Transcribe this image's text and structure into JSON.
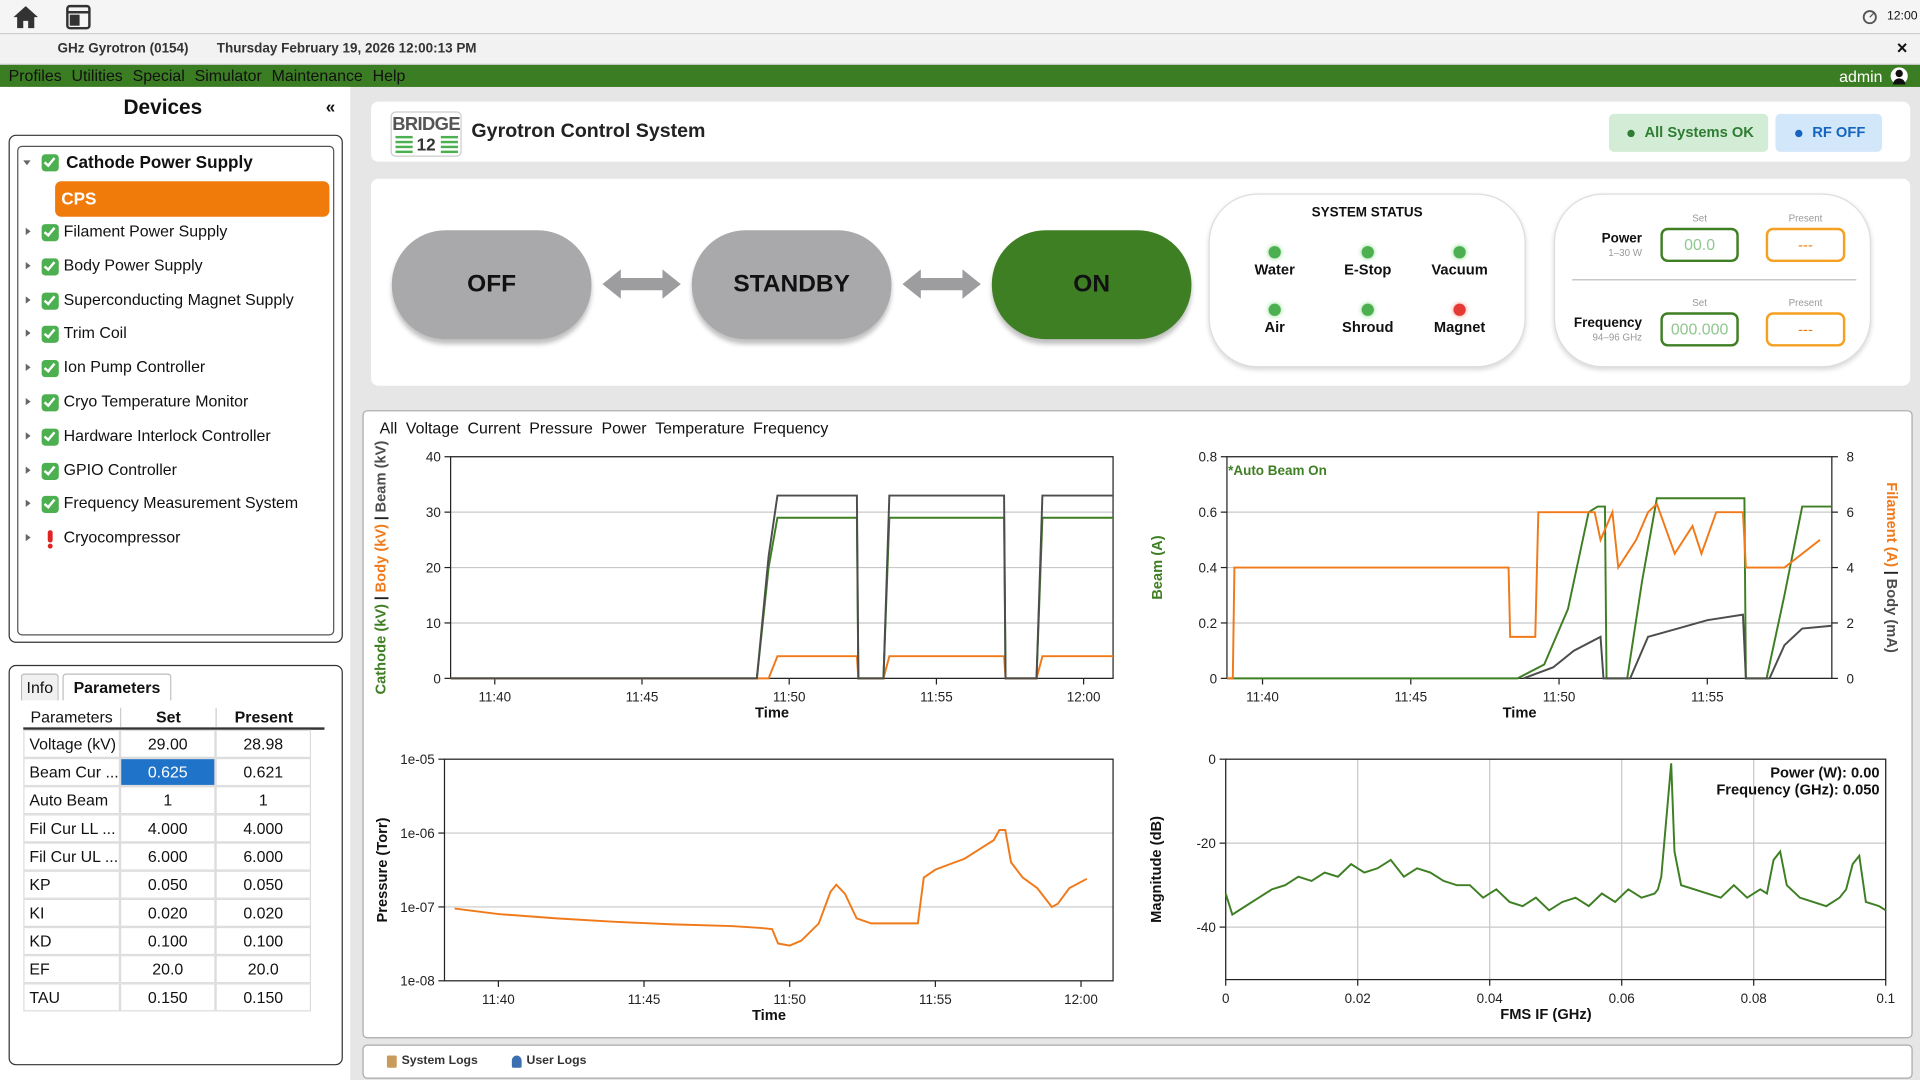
{
  "taskbar": {
    "clock": "12:00"
  },
  "window": {
    "app": "GHz Gyrotron (0154)",
    "datetime": "Thursday February 19, 2026 12:00:13 PM",
    "close": "×"
  },
  "menu": {
    "items": [
      "Profiles",
      "Utilities",
      "Special",
      "Simulator",
      "Maintenance",
      "Help"
    ],
    "user": "admin"
  },
  "devices": {
    "title": "Devices",
    "collapse": "«",
    "items": [
      {
        "label": "Cathode Power Supply",
        "status": "ok",
        "children": [
          "CPS"
        ]
      },
      {
        "label": "Filament Power Supply",
        "status": "ok"
      },
      {
        "label": "Body Power Supply",
        "status": "ok"
      },
      {
        "label": "Superconducting Magnet Supply",
        "status": "ok"
      },
      {
        "label": "Trim Coil",
        "status": "ok"
      },
      {
        "label": "Ion Pump Controller",
        "status": "ok"
      },
      {
        "label": "Cryo Temperature Monitor",
        "status": "ok"
      },
      {
        "label": "Hardware Interlock Controller",
        "status": "ok"
      },
      {
        "label": "GPIO Controller",
        "status": "ok"
      },
      {
        "label": "Frequency Measurement System",
        "status": "ok"
      },
      {
        "label": "Cryocompressor",
        "status": "error"
      }
    ]
  },
  "parameters": {
    "tabs": [
      "Info",
      "Parameters"
    ],
    "active_tab": 1,
    "columns": [
      "Parameters",
      "Set",
      "Present"
    ],
    "selected": [
      1,
      1
    ],
    "rows": [
      [
        "Voltage (kV)",
        "29.00",
        "28.98"
      ],
      [
        "Beam Cur ...",
        "0.625",
        "0.621"
      ],
      [
        "Auto Beam",
        "1",
        "1"
      ],
      [
        "Fil Cur LL ...",
        "4.000",
        "4.000"
      ],
      [
        "Fil Cur UL ...",
        "6.000",
        "6.000"
      ],
      [
        "KP",
        "0.050",
        "0.050"
      ],
      [
        "KI",
        "0.020",
        "0.020"
      ],
      [
        "KD",
        "0.100",
        "0.100"
      ],
      [
        "EF",
        "20.0",
        "20.0"
      ],
      [
        "TAU",
        "0.150",
        "0.150"
      ]
    ]
  },
  "header": {
    "logo": "BRIDGE",
    "logo_number": "12",
    "title": "Gyrotron Control System",
    "badges": [
      {
        "label": "All Systems OK",
        "style": "ok"
      },
      {
        "label": "RF OFF",
        "style": "info"
      }
    ]
  },
  "modes": {
    "buttons": [
      "OFF",
      "STANDBY",
      "ON"
    ],
    "active": 2
  },
  "system_status": {
    "title": "SYSTEM STATUS",
    "items": [
      {
        "label": "Water",
        "state": "ok"
      },
      {
        "label": "E-Stop",
        "state": "ok"
      },
      {
        "label": "Vacuum",
        "state": "ok"
      },
      {
        "label": "Air",
        "state": "ok"
      },
      {
        "label": "Shroud",
        "state": "ok"
      },
      {
        "label": "Magnet",
        "state": "fault"
      }
    ]
  },
  "setpoints": {
    "set_label": "Set",
    "present_label": "Present",
    "rows": [
      {
        "label": "Power",
        "range": "1–30 W",
        "set": "00.0",
        "present": "---"
      },
      {
        "label": "Frequency",
        "range": "94–96 GHz",
        "set": "000.000",
        "present": "---"
      }
    ]
  },
  "plot_tabs": [
    "All",
    "Voltage",
    "Current",
    "Pressure",
    "Power",
    "Temperature",
    "Frequency"
  ],
  "chart_data": [
    {
      "type": "line",
      "xlabel": "Time",
      "ylabel_separator": "|",
      "grid": true,
      "x": [
        698.5,
        708.9,
        709.3,
        709.6,
        712.3,
        712.35,
        713.2,
        713.4,
        717.3,
        717.35,
        718.4,
        718.6,
        721
      ],
      "xlim": [
        698.5,
        721
      ],
      "xticks": [
        {
          "value": 700,
          "label": "11:40"
        },
        {
          "value": 705,
          "label": "11:45"
        },
        {
          "value": 710,
          "label": "11:50"
        },
        {
          "value": 715,
          "label": "11:55"
        },
        {
          "value": 720,
          "label": "12:00"
        }
      ],
      "ylim": [
        0,
        40
      ],
      "yticks": [
        0,
        10,
        20,
        30,
        40
      ],
      "series": [
        {
          "name": "Cathode (kV)",
          "color": "#3f7f24",
          "values": [
            0,
            0,
            20,
            29,
            29,
            0,
            0,
            29,
            29,
            0,
            0,
            29,
            29
          ]
        },
        {
          "name": "Body (kV)",
          "color": "#f07a1a",
          "values": [
            0,
            0,
            0,
            4,
            4,
            0,
            0,
            4,
            4,
            0,
            0,
            4,
            4
          ]
        },
        {
          "name": "Beam (kV)",
          "color": "#4d4d4d",
          "values": [
            0,
            0,
            22,
            33,
            33,
            0,
            0,
            33,
            33,
            0,
            0,
            33,
            33
          ]
        }
      ]
    },
    {
      "type": "line",
      "xlabel": "Time",
      "ylabel_separator": "|",
      "grid": true,
      "annotations": [
        {
          "text": "*Auto Beam On",
          "color": "#3f7f24"
        }
      ],
      "annotation_corner": "upper left",
      "xlim": [
        698.8,
        719.2
      ],
      "xticks": [
        {
          "value": 700,
          "label": "11:40"
        },
        {
          "value": 705,
          "label": "11:45"
        },
        {
          "value": 710,
          "label": "11:50"
        },
        {
          "value": 715,
          "label": "11:55"
        }
      ],
      "ylim": [
        0,
        0.8
      ],
      "yticks": [
        0,
        0.2,
        0.4,
        0.6,
        0.8
      ],
      "y2lim": [
        0,
        8
      ],
      "y2ticks": [
        0,
        2,
        4,
        6,
        8
      ],
      "series": [
        {
          "name": "Beam (A)",
          "color": "#3f7f24",
          "axis": "y",
          "x": [
            698.8,
            708.6,
            709.5,
            710.3,
            711.0,
            711.3,
            711.55,
            711.6,
            712.3,
            712.8,
            713.3,
            714.0,
            715.0,
            716.25,
            716.3,
            717.0,
            717.6,
            718.2,
            719.2
          ],
          "values": [
            0,
            0,
            0.05,
            0.25,
            0.6,
            0.62,
            0.62,
            0,
            0,
            0.35,
            0.65,
            0.65,
            0.65,
            0.65,
            0,
            0,
            0.3,
            0.62,
            0.62
          ]
        },
        {
          "name": "Filament (A)",
          "color": "#f07a1a",
          "axis": "y2",
          "x": [
            698.8,
            699.0,
            699.05,
            708.3,
            708.35,
            709.2,
            709.3,
            711.2,
            711.4,
            711.8,
            712.0,
            712.3,
            712.6,
            713.0,
            713.3,
            713.9,
            714.2,
            714.5,
            714.8,
            715.3,
            716.2,
            716.3,
            717.6,
            718.8
          ],
          "values": [
            0,
            0,
            4,
            4,
            1.5,
            1.5,
            6,
            6,
            5,
            6,
            4,
            4.5,
            5,
            6,
            6.3,
            4.5,
            5,
            5.5,
            4.5,
            6,
            6,
            4,
            4,
            5
          ]
        },
        {
          "name": "Body (mA)",
          "color": "#4d4d4d",
          "axis": "y2",
          "x": [
            708.8,
            709.8,
            710.5,
            711.4,
            711.5,
            712.4,
            713.0,
            714.0,
            715.0,
            716.2,
            716.3,
            717.1,
            717.6,
            718.2,
            719.2
          ],
          "values": [
            0,
            0.4,
            1.0,
            1.5,
            0,
            0,
            1.5,
            1.8,
            2.1,
            2.3,
            0,
            0,
            1.2,
            1.8,
            1.9
          ]
        }
      ]
    },
    {
      "type": "line",
      "xlabel": "Time",
      "ylabel": "Pressure (Torr)",
      "log_y": true,
      "grid": true,
      "color": "#f07a1a",
      "x": [
        698.5,
        700,
        702,
        704,
        706,
        708,
        709,
        709.4,
        709.6,
        710,
        710.4,
        711,
        711.4,
        711.6,
        711.9,
        712.3,
        712.8,
        713.5,
        714.4,
        714.6,
        715,
        715.5,
        716,
        716.5,
        717,
        717.2,
        717.4,
        717.6,
        718,
        718.5,
        719,
        719.2,
        719.6,
        720.2
      ],
      "values": [
        9.5e-08,
        8e-08,
        7e-08,
        6.3e-08,
        5.8e-08,
        5.5e-08,
        5.2e-08,
        5e-08,
        3.2e-08,
        3e-08,
        3.5e-08,
        6e-08,
        1.6e-07,
        2e-07,
        1.5e-07,
        7e-08,
        6e-08,
        6e-08,
        6e-08,
        2.5e-07,
        3.2e-07,
        3.8e-07,
        4.5e-07,
        6e-07,
        8e-07,
        1.1e-06,
        1.1e-06,
        4e-07,
        2.5e-07,
        1.8e-07,
        1e-07,
        1.1e-07,
        1.8e-07,
        2.4e-07
      ],
      "xlim": [
        698.15,
        721.1
      ],
      "xticks": [
        {
          "value": 700,
          "label": "11:40"
        },
        {
          "value": 705,
          "label": "11:45"
        },
        {
          "value": 710,
          "label": "11:50"
        },
        {
          "value": 715,
          "label": "11:55"
        },
        {
          "value": 720,
          "label": "12:00"
        }
      ],
      "ylim": [
        1e-08,
        1e-05
      ],
      "yticks": [
        {
          "value": 1e-08,
          "label": "1e-08"
        },
        {
          "value": 1e-07,
          "label": "1e-07"
        },
        {
          "value": 1e-06,
          "label": "1e-06"
        },
        {
          "value": 1e-05,
          "label": "1e-05"
        }
      ]
    },
    {
      "type": "line",
      "xlabel": "FMS IF (GHz)",
      "ylabel": "Magnitude (dB)",
      "grid": true,
      "color": "#3f7f24",
      "annotations": [
        {
          "text": "Power (W): 0.00"
        },
        {
          "text": "Frequency (GHz): 0.050"
        }
      ],
      "annotation_corner": "upper right",
      "x": [
        0,
        0.001,
        0.003,
        0.005,
        0.007,
        0.009,
        0.011,
        0.013,
        0.015,
        0.017,
        0.019,
        0.021,
        0.023,
        0.025,
        0.027,
        0.029,
        0.031,
        0.033,
        0.035,
        0.037,
        0.039,
        0.041,
        0.043,
        0.045,
        0.047,
        0.049,
        0.051,
        0.053,
        0.055,
        0.057,
        0.059,
        0.061,
        0.063,
        0.065,
        0.0655,
        0.066,
        0.067,
        0.0675,
        0.068,
        0.069,
        0.073,
        0.075,
        0.077,
        0.079,
        0.081,
        0.082,
        0.083,
        0.084,
        0.085,
        0.087,
        0.089,
        0.091,
        0.093,
        0.094,
        0.095,
        0.096,
        0.097,
        0.099,
        0.1
      ],
      "values": [
        -32,
        -37,
        -35,
        -33,
        -31,
        -30,
        -28,
        -29,
        -27,
        -28,
        -25,
        -27,
        -26,
        -24,
        -28,
        -26,
        -27,
        -29,
        -30,
        -30,
        -33,
        -31,
        -34,
        -35,
        -33,
        -36,
        -34,
        -33,
        -35,
        -32,
        -34,
        -31,
        -33,
        -32,
        -31,
        -28,
        -10,
        -1,
        -22,
        -30,
        -32,
        -33,
        -30,
        -33,
        -31,
        -32,
        -24,
        -22,
        -30,
        -33,
        -34,
        -35,
        -33,
        -31,
        -25,
        -23,
        -34,
        -35,
        -36
      ],
      "xlim": [
        0,
        0.1
      ],
      "xticks": [
        0,
        0.02,
        0.04,
        0.06,
        0.08,
        0.1
      ],
      "ylim": [
        -52.5,
        0
      ],
      "yticks": [
        -40,
        -20,
        0
      ]
    }
  ],
  "log_tabs": [
    "System Logs",
    "User Logs"
  ]
}
